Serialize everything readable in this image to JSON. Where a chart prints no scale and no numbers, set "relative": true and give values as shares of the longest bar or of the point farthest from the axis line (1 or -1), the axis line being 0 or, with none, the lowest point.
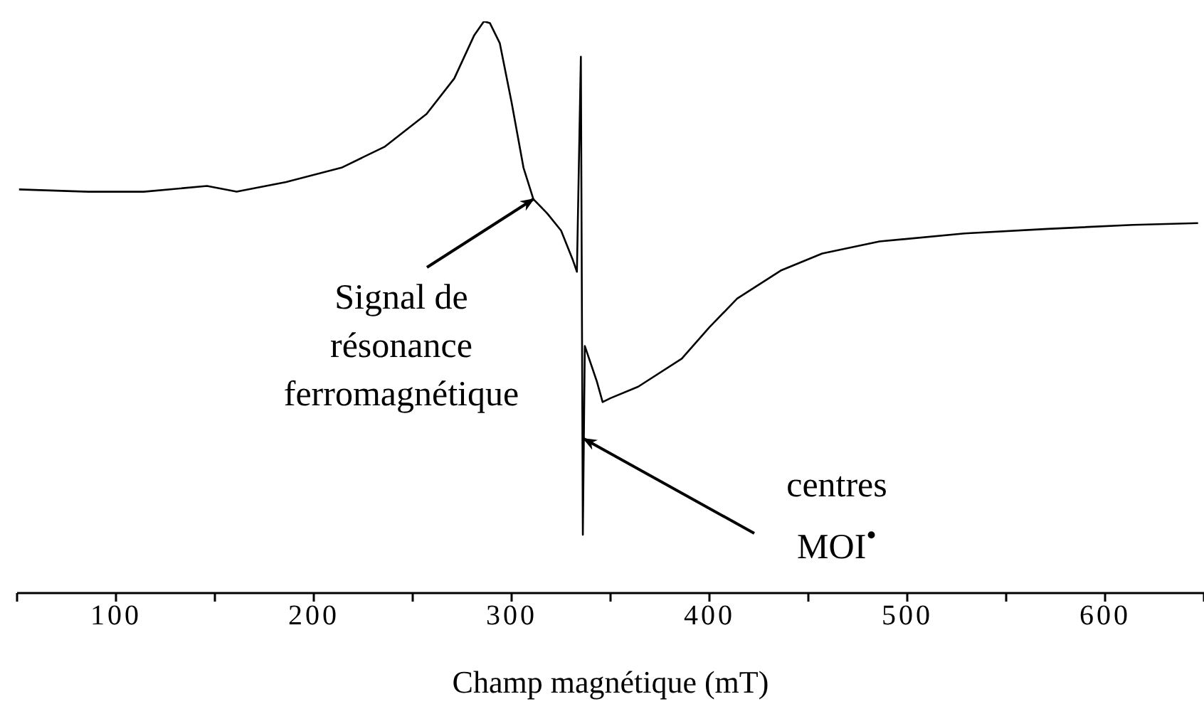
{
  "chart_data": {
    "type": "line",
    "relative": true,
    "xlabel": "Champ magnétique (mT)",
    "xlim": [
      50,
      650
    ],
    "xticks": [
      {
        "value": 50,
        "label": null
      },
      100,
      {
        "value": 150,
        "label": null
      },
      200,
      {
        "value": 250,
        "label": null
      },
      300,
      {
        "value": 350,
        "label": null
      },
      400,
      {
        "value": 450,
        "label": null
      },
      500,
      {
        "value": 550,
        "label": null
      },
      600,
      {
        "value": 650,
        "label": null
      }
    ],
    "x": [
      51,
      86,
      114,
      146,
      161,
      186,
      214,
      236,
      257,
      271,
      281,
      286,
      289,
      294,
      300,
      306,
      311,
      318,
      325,
      331,
      333,
      335,
      336,
      337,
      343,
      346,
      350,
      364,
      386,
      400,
      414,
      436,
      457,
      486,
      529,
      571,
      614,
      647
    ],
    "series": [
      {
        "color": "#000000",
        "values": [
          0.706,
          0.702,
          0.702,
          0.712,
          0.702,
          0.719,
          0.744,
          0.781,
          0.838,
          0.9,
          0.975,
          1,
          0.997,
          0.962,
          0.858,
          0.744,
          0.689,
          0.664,
          0.634,
          0.582,
          0.562,
          0.938,
          0.102,
          0.432,
          0.371,
          0.334,
          0.341,
          0.361,
          0.41,
          0.465,
          0.515,
          0.564,
          0.594,
          0.615,
          0.629,
          0.637,
          0.644,
          0.647
        ]
      }
    ],
    "annotations": [
      {
        "text": "Signal de résonance ferromagnétique",
        "x": 311,
        "y": 0.689
      },
      {
        "text": "centres MOI$^{•}$",
        "x": 336.5,
        "y": 0.27
      }
    ],
    "grid": false,
    "legend": false,
    "marker": "none",
    "line_style": "solid"
  }
}
